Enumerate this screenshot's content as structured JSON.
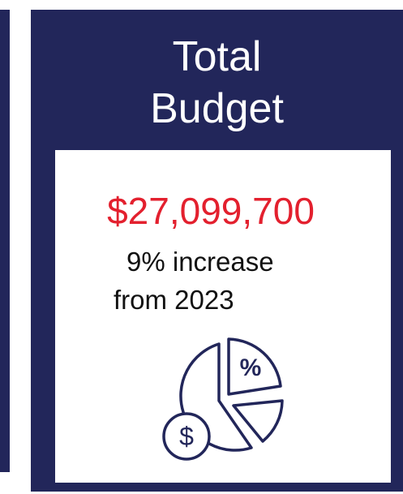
{
  "header": {
    "title_line1": "Total",
    "title_line2": "Budget"
  },
  "amount": "$27,099,700",
  "note_line1": "9% increase",
  "note_line2": "from 2023",
  "icon": {
    "percent": "%",
    "dollar": "$"
  }
}
